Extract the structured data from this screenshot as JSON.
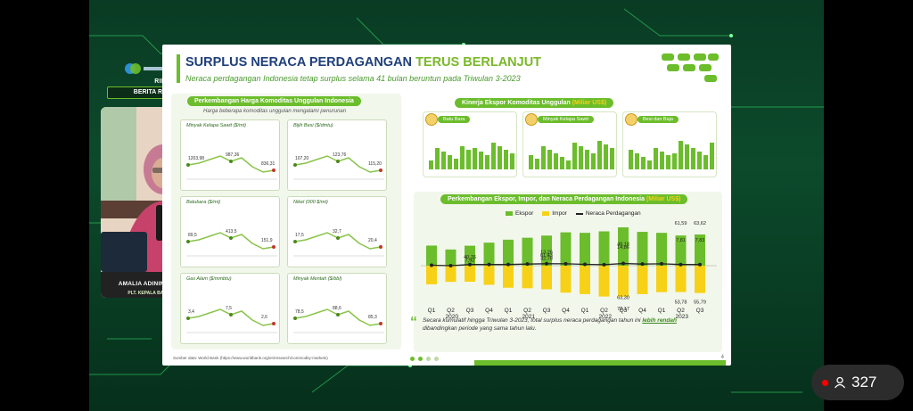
{
  "rilis_label": "RILIS",
  "brs_label": "BERITA RESMI STATISTIK",
  "speaker": {
    "name": "AMALIA ADININGGAR WIDYASANTI",
    "role": "PLT. KEPALA BADAN PUSAT STATISTIK"
  },
  "viewer_count": "327",
  "slide": {
    "title_main": "SURPLUS NERACA PERDAGANGAN ",
    "title_accent": "TERUS BERLANJUT",
    "subtitle": "Neraca perdagangan Indonesia tetap surplus selama 41 bulan beruntun pada Triwulan 3-2023",
    "left_panel_title": "Perkembangan Harga Komoditas Unggulan Indonesia",
    "left_panel_note": "Harga beberapa komoditas unggulan mengalami penurunan",
    "commodities": [
      {
        "title": "Minyak Kelapa Sawit ($/mt)",
        "start": "1203,98",
        "mid": "987,36",
        "end": "836,31"
      },
      {
        "title": "Bijih Besi ($/dmtu)",
        "start": "107,20",
        "mid": "123,76",
        "end": "115,20"
      },
      {
        "title": "Batubara ($/mt)",
        "start": "89,5",
        "mid": "413,5",
        "end": "151,9"
      },
      {
        "title": "Nikel (000 $/mt)",
        "start": "17,5",
        "mid": "32,7",
        "end": "20,4"
      },
      {
        "title": "Gas Alam ($/mmbtu)",
        "start": "3,4",
        "mid": "7,5",
        "end": "2,6"
      },
      {
        "title": "Minyak Mentah ($/bbl)",
        "start": "78,5",
        "mid": "88,6",
        "end": "85,3"
      }
    ],
    "export_panel_title": "Kinerja Ekspor Komoditas Unggulan ",
    "export_panel_unit": "(Miliar US$)",
    "export_cards": [
      {
        "label": "Batu Bara"
      },
      {
        "label": "Minyak Kelapa Sawit"
      },
      {
        "label": "Besi dan Baja"
      }
    ],
    "trade_panel_title": "Perkembangan Ekspor, Impor, dan Neraca Perdagangan Indonesia ",
    "trade_panel_unit": "(Miliar US$)",
    "legend": {
      "export": "Ekspor",
      "import": "Impor",
      "balance": "Neraca Perdagangan"
    },
    "quote_pre": "Secara kumulatif hingga Triwulan 3-2023, total surplus neraca perdagangan tahun ini ",
    "quote_em": "lebih rendah",
    "quote_post": " dibandingkan periode yang sama tahun lalu.",
    "source": "Sumber data: World Bank (https://www.worldbank.org/en/research/commodity-markets)",
    "page_number": "4"
  },
  "colors": {
    "green": "#6cbd2c",
    "yellow": "#f7d117",
    "navy": "#1f3f7a"
  },
  "chart_data": {
    "type": "bar",
    "categories": [
      "Q1",
      "Q2",
      "Q3",
      "Q4",
      "Q1",
      "Q2",
      "Q3",
      "Q4",
      "Q1",
      "Q2",
      "Q3",
      "Q4",
      "Q1",
      "Q2",
      "Q3"
    ],
    "year_labels": [
      "2020",
      "2021",
      "2022",
      "2023"
    ],
    "series": [
      {
        "name": "Ekspor",
        "values": [
          41,
          33,
          40.76,
          47,
          53,
          57,
          61.43,
          68,
          67,
          70,
          78.17,
          69,
          67,
          61.59,
          63.62
        ]
      },
      {
        "name": "Impor",
        "values": [
          -38,
          -33,
          -32.78,
          -39,
          -45,
          -46,
          -48.18,
          -55,
          -58,
          -63,
          -63.3,
          -58,
          -54,
          -53.78,
          -55.79
        ]
      },
      {
        "name": "Neraca Perdagangan",
        "values": [
          3,
          0,
          7.92,
          8,
          8,
          11,
          13.26,
          13,
          9,
          7,
          14.86,
          11,
          13,
          7.81,
          7.83
        ]
      }
    ],
    "data_labels": [
      {
        "text": "7,92"
      },
      {
        "text": "40,76"
      },
      {
        "text": "32,78"
      },
      {
        "text": "61,43"
      },
      {
        "text": "13,26"
      },
      {
        "text": "48,18"
      },
      {
        "text": "78,17"
      },
      {
        "text": "14,86"
      },
      {
        "text": "63,30"
      },
      {
        "text": "61,59"
      },
      {
        "text": "63,62"
      },
      {
        "text": "7,81"
      },
      {
        "text": "7,83"
      },
      {
        "text": "53,78"
      },
      {
        "text": "55,79"
      }
    ]
  }
}
